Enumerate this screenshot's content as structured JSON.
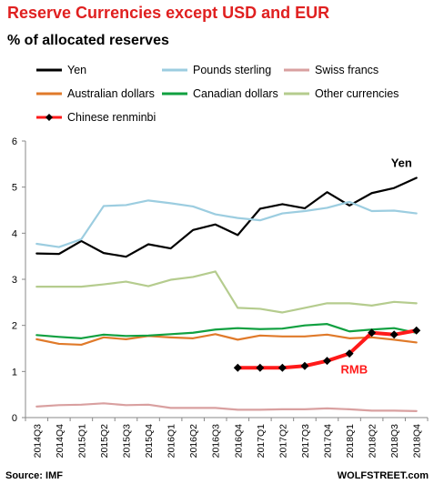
{
  "header": {
    "title": "Reserve Currencies except USD and EUR",
    "subtitle": "% of allocated reserves"
  },
  "footer": {
    "source": "Source: IMF",
    "site": "WOLFSTREET.com"
  },
  "chart_data": {
    "type": "line",
    "title": "Reserve Currencies except USD and EUR",
    "subtitle": "% of allocated reserves",
    "ylim": [
      0,
      6
    ],
    "yticks": [
      "0",
      "1",
      "2",
      "3",
      "4",
      "5",
      "6"
    ],
    "grid": false,
    "legend_position": "top",
    "categories": [
      "2014Q3",
      "2014Q4",
      "2015Q1",
      "2015Q2",
      "2015Q3",
      "2015Q4",
      "2016Q1",
      "2016Q2",
      "2016Q3",
      "2016Q4",
      "2017Q1",
      "2017Q2",
      "2017Q3",
      "2017Q4",
      "2018Q1",
      "2018Q2",
      "2018Q3",
      "2018Q4"
    ],
    "series": [
      {
        "name": "Yen",
        "color": "#000000",
        "values": [
          3.56,
          3.55,
          3.83,
          3.57,
          3.49,
          3.76,
          3.67,
          4.07,
          4.19,
          3.96,
          4.53,
          4.63,
          4.54,
          4.89,
          4.6,
          4.87,
          4.98,
          5.2
        ]
      },
      {
        "name": "Pounds sterling",
        "color": "#9ccde0",
        "values": [
          3.77,
          3.7,
          3.87,
          4.59,
          4.61,
          4.71,
          4.65,
          4.58,
          4.41,
          4.33,
          4.28,
          4.43,
          4.48,
          4.55,
          4.68,
          4.48,
          4.49,
          4.43
        ]
      },
      {
        "name": "Swiss francs",
        "color": "#d9a0a0",
        "values": [
          0.24,
          0.27,
          0.28,
          0.31,
          0.27,
          0.28,
          0.21,
          0.21,
          0.21,
          0.17,
          0.17,
          0.18,
          0.18,
          0.2,
          0.18,
          0.15,
          0.15,
          0.14
        ]
      },
      {
        "name": "Australian dollars",
        "color": "#e07a2a",
        "values": [
          1.7,
          1.6,
          1.58,
          1.74,
          1.7,
          1.77,
          1.74,
          1.72,
          1.81,
          1.69,
          1.78,
          1.76,
          1.76,
          1.8,
          1.72,
          1.74,
          1.69,
          1.63
        ]
      },
      {
        "name": "Canadian dollars",
        "color": "#10a040",
        "values": [
          1.79,
          1.75,
          1.72,
          1.8,
          1.77,
          1.78,
          1.81,
          1.84,
          1.91,
          1.94,
          1.92,
          1.93,
          2.0,
          2.03,
          1.87,
          1.91,
          1.94,
          1.84
        ]
      },
      {
        "name": "Other currencies",
        "color": "#b5cc8e",
        "values": [
          2.84,
          2.84,
          2.84,
          2.89,
          2.95,
          2.85,
          2.99,
          3.05,
          3.17,
          2.38,
          2.36,
          2.28,
          2.38,
          2.48,
          2.48,
          2.43,
          2.51,
          2.48
        ]
      },
      {
        "name": "Chinese renminbi",
        "color": "#ff1a1a",
        "markers": true,
        "values": [
          null,
          null,
          null,
          null,
          null,
          null,
          null,
          null,
          null,
          1.08,
          1.08,
          1.08,
          1.12,
          1.23,
          1.39,
          1.84,
          1.8,
          1.89
        ]
      }
    ],
    "annotations": [
      {
        "text": "Yen",
        "series": "Yen",
        "color": "#000000"
      },
      {
        "text": "RMB",
        "series": "Chinese renminbi",
        "color": "#ff1a1a"
      }
    ]
  }
}
